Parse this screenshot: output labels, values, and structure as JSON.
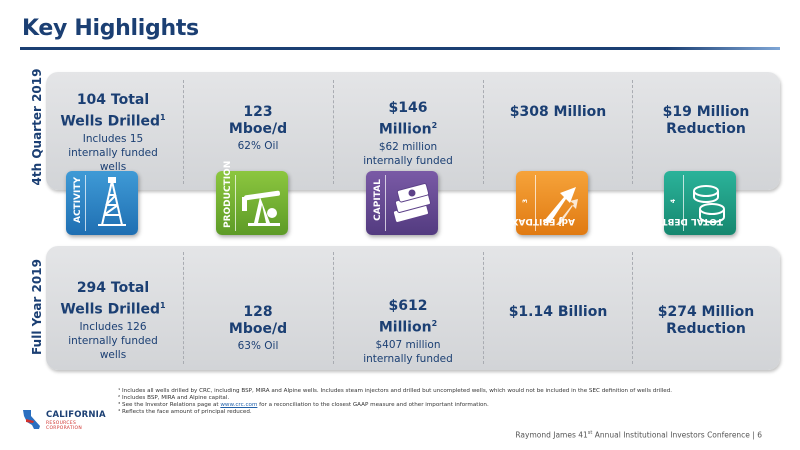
{
  "header": {
    "title": "Key Highlights"
  },
  "rows": {
    "quarter_label": "4th Quarter 2019",
    "year_label": "Full Year 2019"
  },
  "columns": [
    {
      "tag": "ACTIVITY",
      "icon": "oil-derrick-icon",
      "color": "#2a86c8",
      "q_big": "104 Total Wells Drilled",
      "q_sup": "1",
      "q_small": "Includes 15 internally funded wells",
      "y_big": "294 Total Wells Drilled",
      "y_sup": "1",
      "y_small": "Includes 126 internally funded wells"
    },
    {
      "tag": "PRODUCTION",
      "icon": "pump-jack-icon",
      "color": "#76b335",
      "q_big": "123 Mboe/d",
      "q_sup": "",
      "q_small": "62% Oil",
      "y_big": "128 Mboe/d",
      "y_sup": "",
      "y_small": "63% Oil"
    },
    {
      "tag": "CAPITAL",
      "icon": "money-stack-icon",
      "color": "#6a4b96",
      "q_big": "$146 Million",
      "q_sup": "2",
      "q_small": "$62 million internally funded",
      "y_big": "$612 Million",
      "y_sup": "2",
      "y_small": "$407 million internally funded"
    },
    {
      "tag": "Adj EBITDAX",
      "tag_sup": "3",
      "icon": "growth-arrows-icon",
      "color": "#f0952a",
      "q_big": "$308 Million",
      "q_sup": "",
      "q_small": "",
      "y_big": "$1.14 Billion",
      "y_sup": "",
      "y_small": ""
    },
    {
      "tag": "TOTAL DEBT",
      "tag_sup": "4",
      "icon": "coins-icon",
      "color": "#20a088",
      "q_big": "$19 Million Reduction",
      "q_sup": "",
      "q_small": "",
      "y_big": "$274 Million Reduction",
      "y_sup": "",
      "y_small": ""
    }
  ],
  "footnotes": {
    "n1": "¹ Includes all wells drilled by CRC, including BSP, MIRA and Alpine wells. Includes steam injectors and drilled but uncompleted wells, which would not be included in the SEC definition of wells drilled.",
    "n2": "² Includes BSP, MIRA and Alpine capital.",
    "n3a": "³ See the Investor Relations page at ",
    "n3link": "www.crc.com",
    "n3b": " for a reconciliation to the closest GAAP measure and other important information.",
    "n4": "⁴ Reflects the face amount of principal reduced."
  },
  "logo": {
    "name": "CALIFORNIA",
    "sub": "RESOURCES CORPORATION"
  },
  "footer": {
    "pre": "Raymond James 41",
    "sup": "st",
    "post": " Annual Institutional Investors Conference | 6"
  }
}
